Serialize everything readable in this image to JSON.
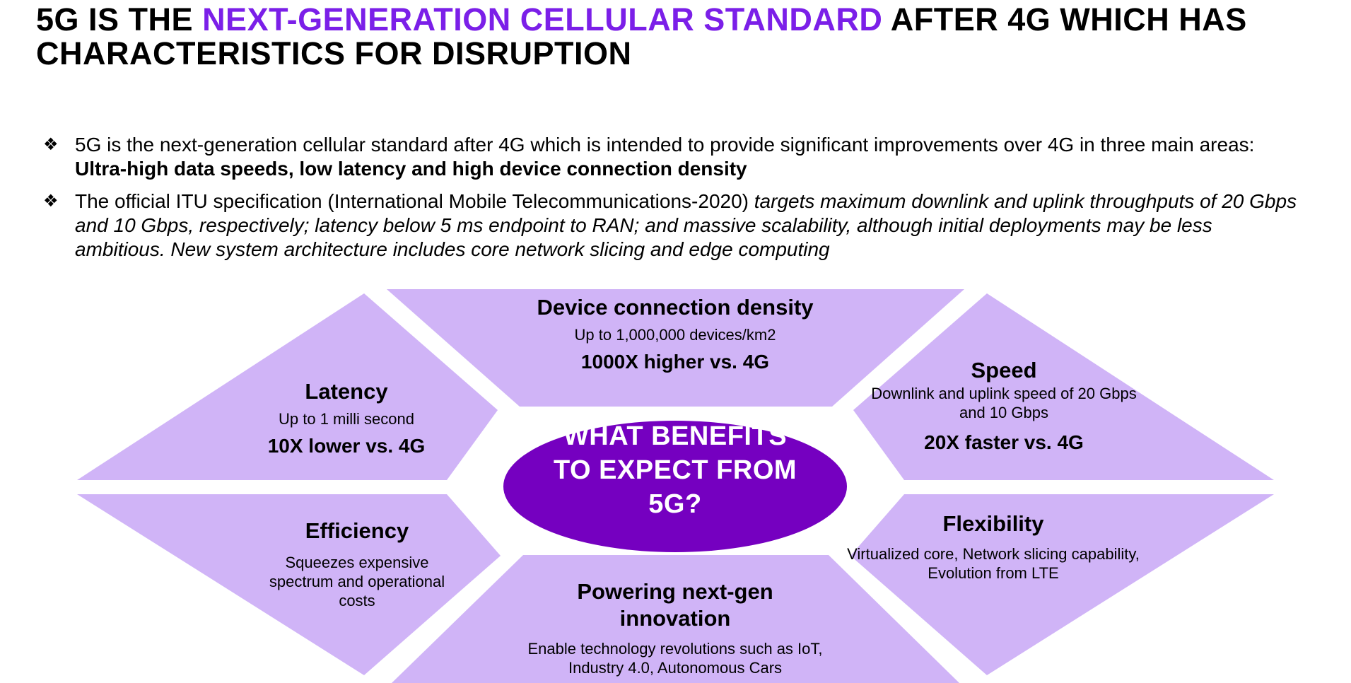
{
  "title": {
    "part1": "5G IS THE ",
    "accent": "NEXT-GENERATION CELLULAR STANDARD",
    "part2": " AFTER 4G WHICH HAS CHARACTERISTICS FOR DISRUPTION"
  },
  "bullets": [
    {
      "icon": "diamond-bullet-icon",
      "text": "5G is the next-generation cellular standard after 4G which is intended to provide significant improvements over 4G in three main areas: ",
      "bold": "Ultra-high data speeds, low latency and high device connection density"
    },
    {
      "icon": "diamond-bullet-icon",
      "text": "The official ITU specification (International Mobile Telecommunications-2020) ",
      "italic": "targets maximum downlink and uplink throughputs of 20 Gbps and 10 Gbps, respectively; latency below 5 ms endpoint to RAN; and massive scalability, although initial deployments may be less ambitious. New system architecture includes core network slicing and edge computing"
    }
  ],
  "center": {
    "label": "WHAT BENEFITS TO EXPECT FROM 5G?"
  },
  "segments": {
    "device_density": {
      "title": "Device connection density",
      "desc": "Up to 1,000,000 devices/km2",
      "stat": "1000X higher vs. 4G"
    },
    "latency": {
      "title": "Latency",
      "desc": "Up to 1 milli second",
      "stat": "10X lower vs. 4G"
    },
    "speed": {
      "title": "Speed",
      "desc": "Downlink and uplink speed of 20 Gbps and 10 Gbps",
      "stat": "20X faster vs. 4G"
    },
    "efficiency": {
      "title": "Efficiency",
      "desc": "Squeezes expensive spectrum and operational costs"
    },
    "flexibility": {
      "title": "Flexibility",
      "desc": "Virtualized core, Network slicing capability, Evolution from LTE"
    },
    "innovation": {
      "title": "Powering next-gen innovation",
      "desc": "Enable technology revolutions such as IoT, Industry 4.0, Autonomous Cars"
    }
  },
  "colors": {
    "accent": "#7B1FE8",
    "segment_fill": "#D0B4F7",
    "center_fill": "#7500C0",
    "text": "#000000"
  }
}
